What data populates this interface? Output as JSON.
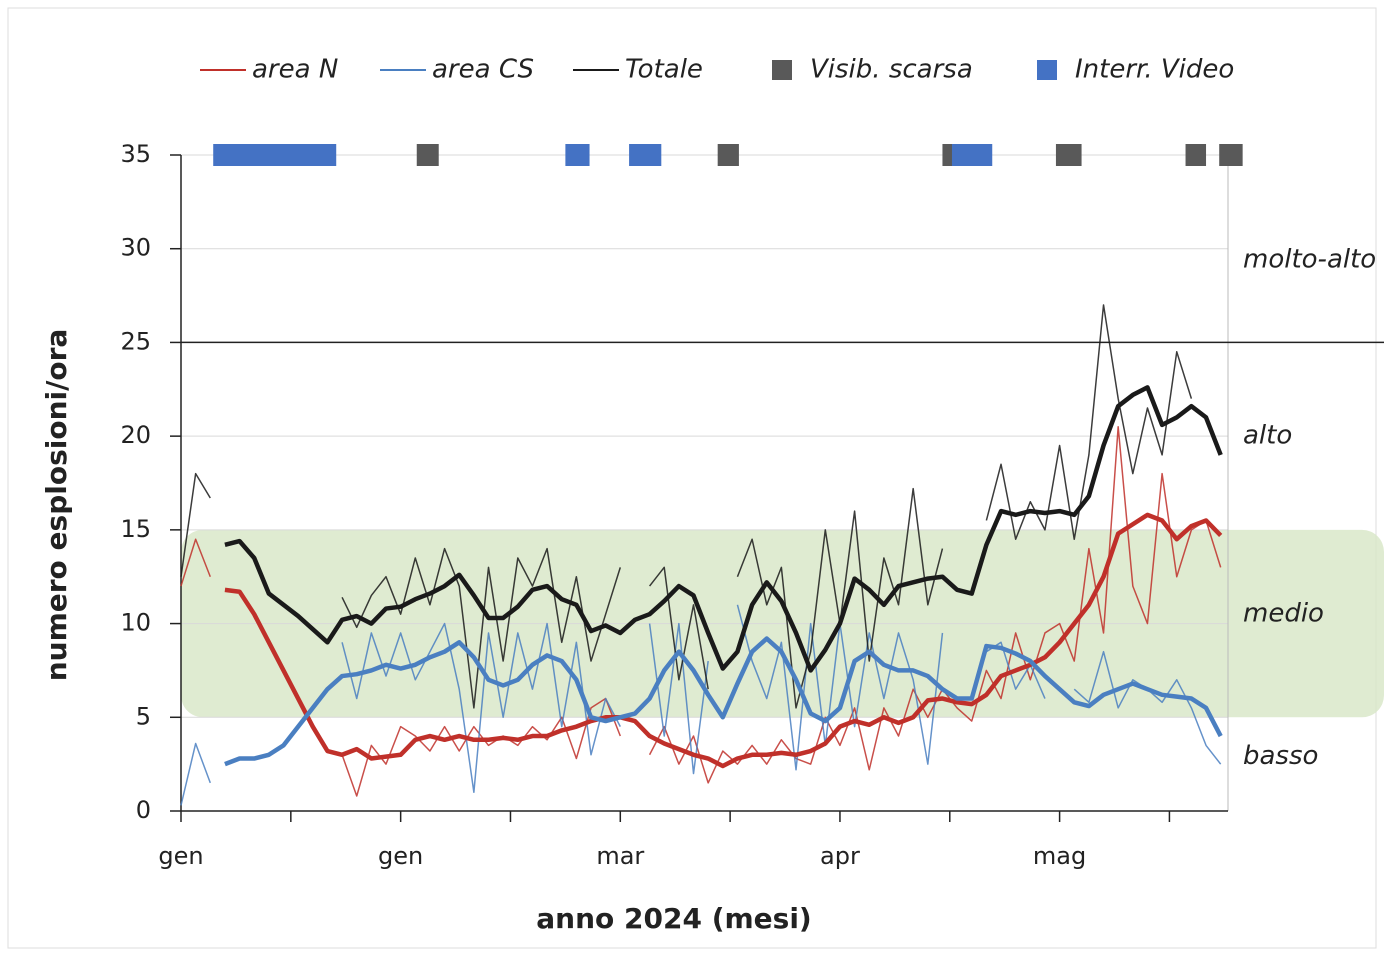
{
  "chart_data": {
    "type": "line",
    "xlabel": "anno 2024 (mesi)",
    "ylabel": "numero esplosioni/ora",
    "xlim": [
      0,
      143
    ],
    "ylim": [
      0,
      35
    ],
    "xticks": [
      {
        "value": 0,
        "label": "gen"
      },
      {
        "value": 30,
        "label": "gen"
      },
      {
        "value": 60,
        "label": "mar"
      },
      {
        "value": 90,
        "label": "apr"
      },
      {
        "value": 120,
        "label": "mag"
      }
    ],
    "xminorticks": [
      15,
      45,
      75,
      105,
      135
    ],
    "yticks": [
      0,
      5,
      10,
      15,
      20,
      25,
      30,
      35
    ],
    "grid": true,
    "band": [
      5,
      15
    ],
    "band_color": "#d9e8c9",
    "threshold": 25,
    "annotations": [
      {
        "text": "molto-alto",
        "y": 29.4
      },
      {
        "text": "alto",
        "y": 20
      },
      {
        "text": "medio",
        "y": 10.5
      },
      {
        "text": "basso",
        "y": 2.9
      }
    ],
    "x": [
      0,
      2,
      4,
      6,
      8,
      10,
      12,
      14,
      16,
      18,
      20,
      22,
      24,
      26,
      28,
      30,
      32,
      34,
      36,
      38,
      40,
      42,
      44,
      46,
      48,
      50,
      52,
      54,
      56,
      58,
      60,
      62,
      64,
      66,
      68,
      70,
      72,
      74,
      76,
      78,
      80,
      82,
      84,
      86,
      88,
      90,
      92,
      94,
      96,
      98,
      100,
      102,
      104,
      106,
      108,
      110,
      112,
      114,
      116,
      118,
      120,
      122,
      124,
      126,
      128,
      130,
      132,
      134,
      136,
      138,
      140,
      142
    ],
    "series": [
      {
        "name": "area N",
        "color": "#c0302a",
        "values": [
          12,
          14.5,
          12.5,
          null,
          null,
          null,
          null,
          null,
          null,
          null,
          null,
          3,
          0.8,
          3.5,
          2.5,
          4.5,
          4,
          3.2,
          4.5,
          3.2,
          4.5,
          3.5,
          4,
          3.5,
          4.5,
          3.8,
          5,
          2.8,
          5.5,
          6,
          4,
          null,
          3,
          4.5,
          2.5,
          4,
          1.5,
          3.2,
          2.5,
          3.5,
          2.5,
          3.8,
          2.8,
          2.5,
          5,
          3.5,
          5.5,
          2.2,
          5.5,
          4,
          6.5,
          5,
          6.5,
          5.5,
          4.8,
          7.5,
          6,
          9.5,
          7,
          9.5,
          10,
          8,
          14,
          9.5,
          20.5,
          12,
          10,
          18,
          12.5,
          15,
          15.5,
          13
        ],
        "trend": [
          null,
          null,
          null,
          11.8,
          11.7,
          10.5,
          9,
          7.5,
          6,
          4.5,
          3.2,
          3,
          3.3,
          2.8,
          2.9,
          3,
          3.8,
          4,
          3.8,
          4,
          3.8,
          3.8,
          3.9,
          3.8,
          4,
          4,
          4.3,
          4.5,
          4.8,
          5,
          5,
          4.8,
          4,
          3.6,
          3.3,
          3,
          2.8,
          2.4,
          2.8,
          3,
          3,
          3.1,
          3,
          3.2,
          3.6,
          4.5,
          4.8,
          4.6,
          5,
          4.7,
          5,
          5.9,
          6,
          5.8,
          5.7,
          6.2,
          7.2,
          7.5,
          7.8,
          8.2,
          9,
          10,
          11,
          12.5,
          14.8,
          15.3,
          15.8,
          15.5,
          14.5,
          15.2,
          15.5,
          14.7
        ]
      },
      {
        "name": "area CS",
        "color": "#4a7fc1",
        "values": [
          0.3,
          3.6,
          1.5,
          null,
          null,
          null,
          null,
          null,
          null,
          null,
          null,
          9,
          6,
          9.5,
          7.2,
          9.5,
          7,
          8.5,
          10,
          6.5,
          1,
          9.5,
          5,
          9.5,
          6.5,
          10,
          4.5,
          9,
          3,
          6,
          4.5,
          null,
          10,
          4,
          10,
          2,
          8,
          null,
          11,
          8,
          6,
          9,
          2.2,
          10,
          3.5,
          10,
          4.5,
          9.5,
          6,
          9.5,
          7,
          2.5,
          9.5,
          null,
          null,
          8.5,
          9,
          6.5,
          7.8,
          6,
          null,
          6.5,
          5.8,
          8.5,
          5.5,
          7,
          6.5,
          5.8,
          7,
          5.5,
          3.5,
          2.5
        ],
        "trend": [
          null,
          null,
          null,
          2.5,
          2.8,
          2.8,
          3,
          3.5,
          4.5,
          5.5,
          6.5,
          7.2,
          7.3,
          7.5,
          7.8,
          7.6,
          7.8,
          8.2,
          8.5,
          9,
          8.2,
          7,
          6.7,
          7,
          7.8,
          8.3,
          8,
          7,
          5,
          4.8,
          5,
          5.2,
          6,
          7.5,
          8.5,
          7.5,
          6.2,
          5,
          6.8,
          8.5,
          9.2,
          8.5,
          7,
          5.2,
          4.8,
          5.5,
          8,
          8.5,
          7.8,
          7.5,
          7.5,
          7.2,
          6.5,
          6,
          6,
          8.8,
          8.7,
          8.4,
          8,
          7.2,
          6.5,
          5.8,
          5.6,
          6.2,
          6.5,
          6.8,
          6.5,
          6.2,
          6.1,
          6,
          5.5,
          4
        ]
      },
      {
        "name": "Totale",
        "color": "#1a1a1a",
        "values": [
          12.5,
          18,
          16.7,
          null,
          null,
          null,
          null,
          null,
          null,
          null,
          null,
          11.4,
          9.8,
          11.5,
          12.5,
          10.5,
          13.5,
          11,
          14,
          12,
          5.5,
          13,
          8,
          13.5,
          12,
          14,
          9,
          12.5,
          8,
          10.5,
          13,
          null,
          12,
          13,
          7,
          11,
          6.5,
          null,
          12.5,
          14.5,
          11,
          13,
          5.5,
          8.5,
          15,
          10,
          16,
          8,
          13.5,
          11,
          17.2,
          11,
          14,
          null,
          null,
          15.5,
          18.5,
          14.5,
          16.5,
          15,
          19.5,
          14.5,
          19,
          27,
          22,
          18,
          21.5,
          19,
          24.5,
          22,
          null,
          17
        ],
        "trend": [
          null,
          null,
          null,
          14.2,
          14.4,
          13.5,
          11.6,
          11,
          10.4,
          9.7,
          9,
          10.2,
          10.4,
          10,
          10.8,
          10.9,
          11.3,
          11.6,
          12,
          12.6,
          11.5,
          10.3,
          10.3,
          10.9,
          11.8,
          12,
          11.3,
          11,
          9.6,
          9.9,
          9.5,
          10.2,
          10.5,
          11.2,
          12,
          11.5,
          9.5,
          7.6,
          8.5,
          11,
          12.2,
          11.2,
          9.5,
          7.5,
          8.6,
          10,
          12.4,
          11.8,
          11,
          12,
          12.2,
          12.4,
          12.5,
          11.8,
          11.6,
          14.2,
          16,
          15.8,
          16,
          15.9,
          16,
          15.8,
          16.8,
          19.5,
          21.6,
          22.2,
          22.6,
          20.6,
          21,
          21.6,
          21,
          19
        ]
      }
    ],
    "event_y": 35,
    "events": [
      {
        "name": "Visib. scarsa",
        "color": "#595959",
        "intervals": [
          [
            32.2,
            35.2
          ],
          [
            73.3,
            76.2
          ],
          [
            104,
            106
          ],
          [
            119.5,
            123
          ],
          [
            137.2,
            140
          ],
          [
            141.8,
            145
          ]
        ]
      },
      {
        "name": "Interr. Video",
        "color": "#4472c4",
        "intervals": [
          [
            4.4,
            21.2
          ],
          [
            52.5,
            55.8
          ],
          [
            61.2,
            65.6
          ],
          [
            105.3,
            110.8
          ]
        ]
      }
    ]
  }
}
